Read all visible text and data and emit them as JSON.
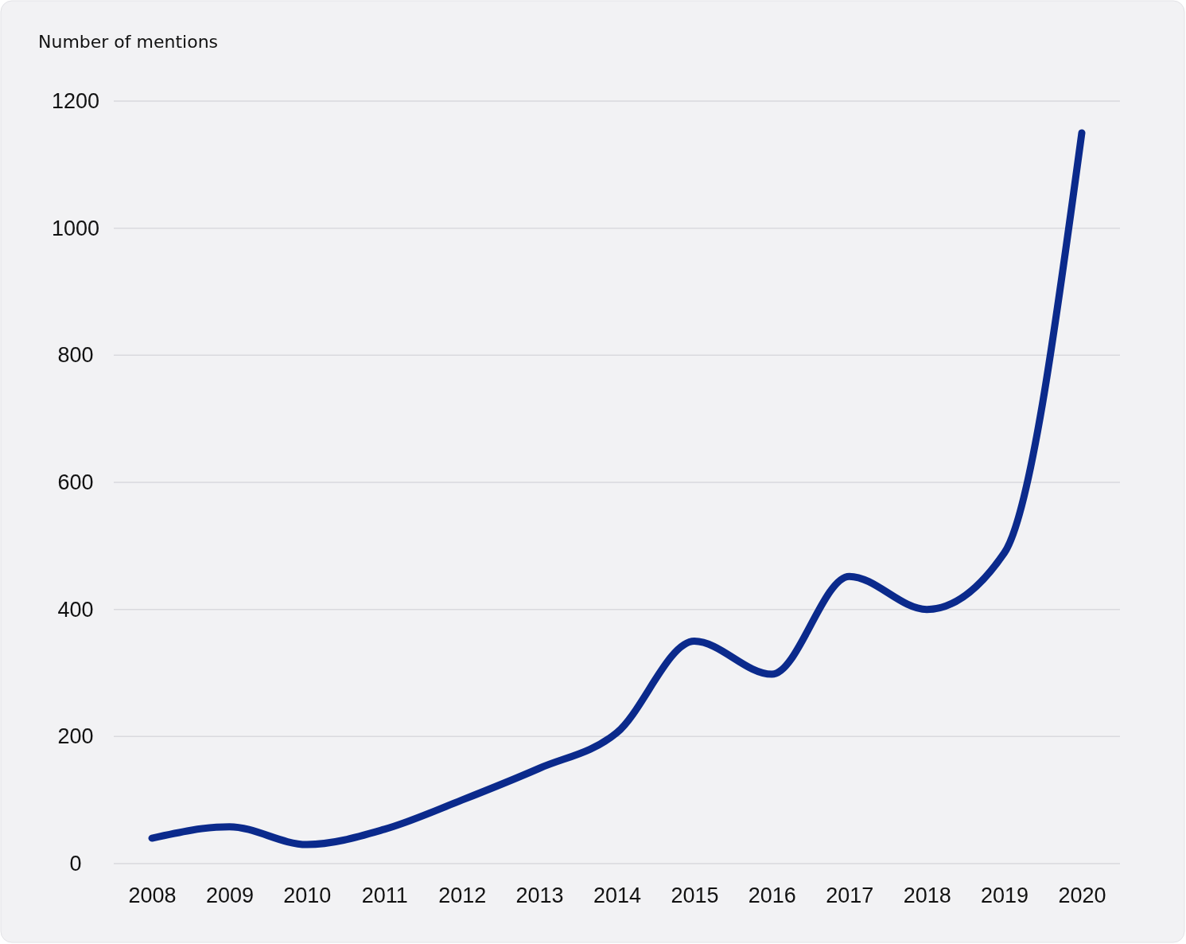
{
  "chart_data": {
    "type": "line",
    "ylabel": "Number of mentions",
    "categories": [
      "2008",
      "2009",
      "2010",
      "2011",
      "2012",
      "2013",
      "2014",
      "2015",
      "2016",
      "2017",
      "2018",
      "2019",
      "2020"
    ],
    "series": [
      {
        "color": "#0b2a8c",
        "values": [
          40,
          58,
          30,
          54,
          100,
          150,
          206,
          350,
          298,
          452,
          400,
          489,
          1150
        ]
      }
    ],
    "ylim": [
      0,
      1200
    ],
    "yticks": [
      0,
      200,
      400,
      600,
      800,
      1000,
      1200
    ],
    "grid": "y",
    "marker": "none",
    "line_style": "solid"
  }
}
